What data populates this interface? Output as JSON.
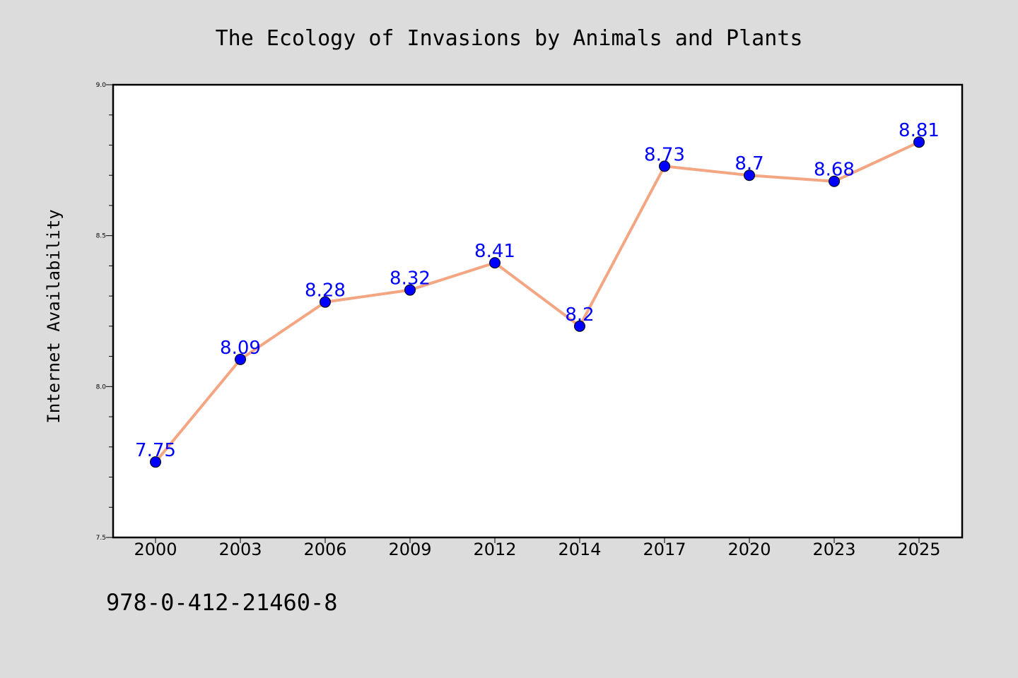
{
  "colors": {
    "background": "#dcdcdc",
    "plot_background": "#ffffff",
    "line": "#f4a582",
    "marker": "#0000ff",
    "value_label": "#0000ff"
  },
  "caption": "978-0-412-21460-8",
  "chart_data": {
    "type": "line",
    "title": "The Ecology of Invasions by Animals and Plants",
    "xlabel": "",
    "ylabel": "Internet Availability",
    "categories": [
      "2000",
      "2003",
      "2006",
      "2009",
      "2012",
      "2014",
      "2017",
      "2020",
      "2023",
      "2025"
    ],
    "series": [
      {
        "values": [
          7.75,
          8.09,
          8.28,
          8.32,
          8.41,
          8.2,
          8.73,
          8.7,
          8.68,
          8.81
        ],
        "labels": [
          "7.75",
          "8.09",
          "8.28",
          "8.32",
          "8.41",
          "8.2",
          "8.73",
          "8.7",
          "8.68",
          "8.81"
        ]
      }
    ],
    "ylim": [
      7.5,
      9.0
    ],
    "yticks": [
      "7.5",
      "8.0",
      "8.5",
      "9.0"
    ],
    "grid": false,
    "legend": "none"
  }
}
